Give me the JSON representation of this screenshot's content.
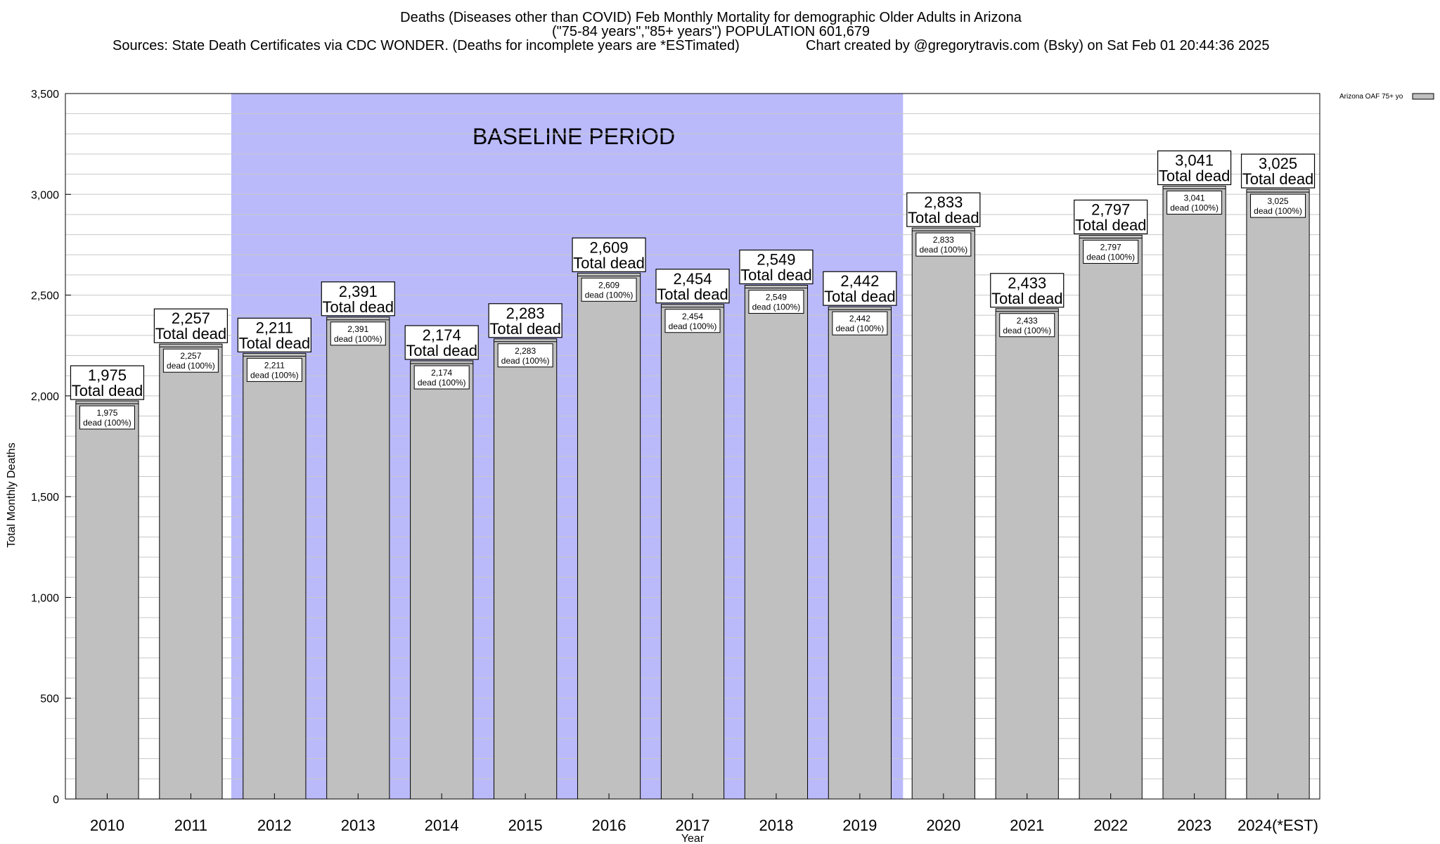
{
  "chart_data": {
    "type": "bar",
    "title": "Deaths (Diseases other than COVID) Feb Monthly Mortality for demographic Older Adults in Arizona",
    "subtitle": "(\"75-84 years\",\"85+ years\") POPULATION 601,679",
    "sources": "Sources: State Death Certificates via CDC WONDER. (Deaths for incomplete years are *ESTimated)",
    "credit": "Chart created by @gregorytravis.com (Bsky) on Sat Feb 01 20:44:36 2025",
    "xlabel": "Year",
    "ylabel": "Total Monthly Deaths",
    "ylim": [
      0,
      3500
    ],
    "y_ticks": [
      0,
      500,
      1000,
      1500,
      2000,
      2500,
      3000,
      3500
    ],
    "y_tick_labels": [
      "0",
      "500",
      "1,000",
      "1,500",
      "2,000",
      "2,500",
      "3,000",
      "3,500"
    ],
    "y_minor_step": 100,
    "grid": true,
    "legend_placement": "top-right",
    "categories": [
      "2010",
      "2011",
      "2012",
      "2013",
      "2014",
      "2015",
      "2016",
      "2017",
      "2018",
      "2019",
      "2020",
      "2021",
      "2022",
      "2023",
      "2024(*EST)"
    ],
    "series": [
      {
        "name": "Arizona OAF 75+ yo",
        "values": [
          1975,
          2257,
          2211,
          2391,
          2174,
          2283,
          2609,
          2454,
          2549,
          2442,
          2833,
          2433,
          2797,
          3041,
          3025
        ],
        "color": "#c0c0c0"
      }
    ],
    "value_labels": [
      "1,975",
      "2,257",
      "2,211",
      "2,391",
      "2,174",
      "2,283",
      "2,609",
      "2,454",
      "2,549",
      "2,442",
      "2,833",
      "2,433",
      "2,797",
      "3,041",
      "3,025"
    ],
    "big_label_suffix": "Total dead",
    "small_label_suffix": "dead (100%)",
    "baseline": {
      "label": "BASELINE PERIOD",
      "start": "2012",
      "end": "2019",
      "color": "#babafb"
    }
  }
}
